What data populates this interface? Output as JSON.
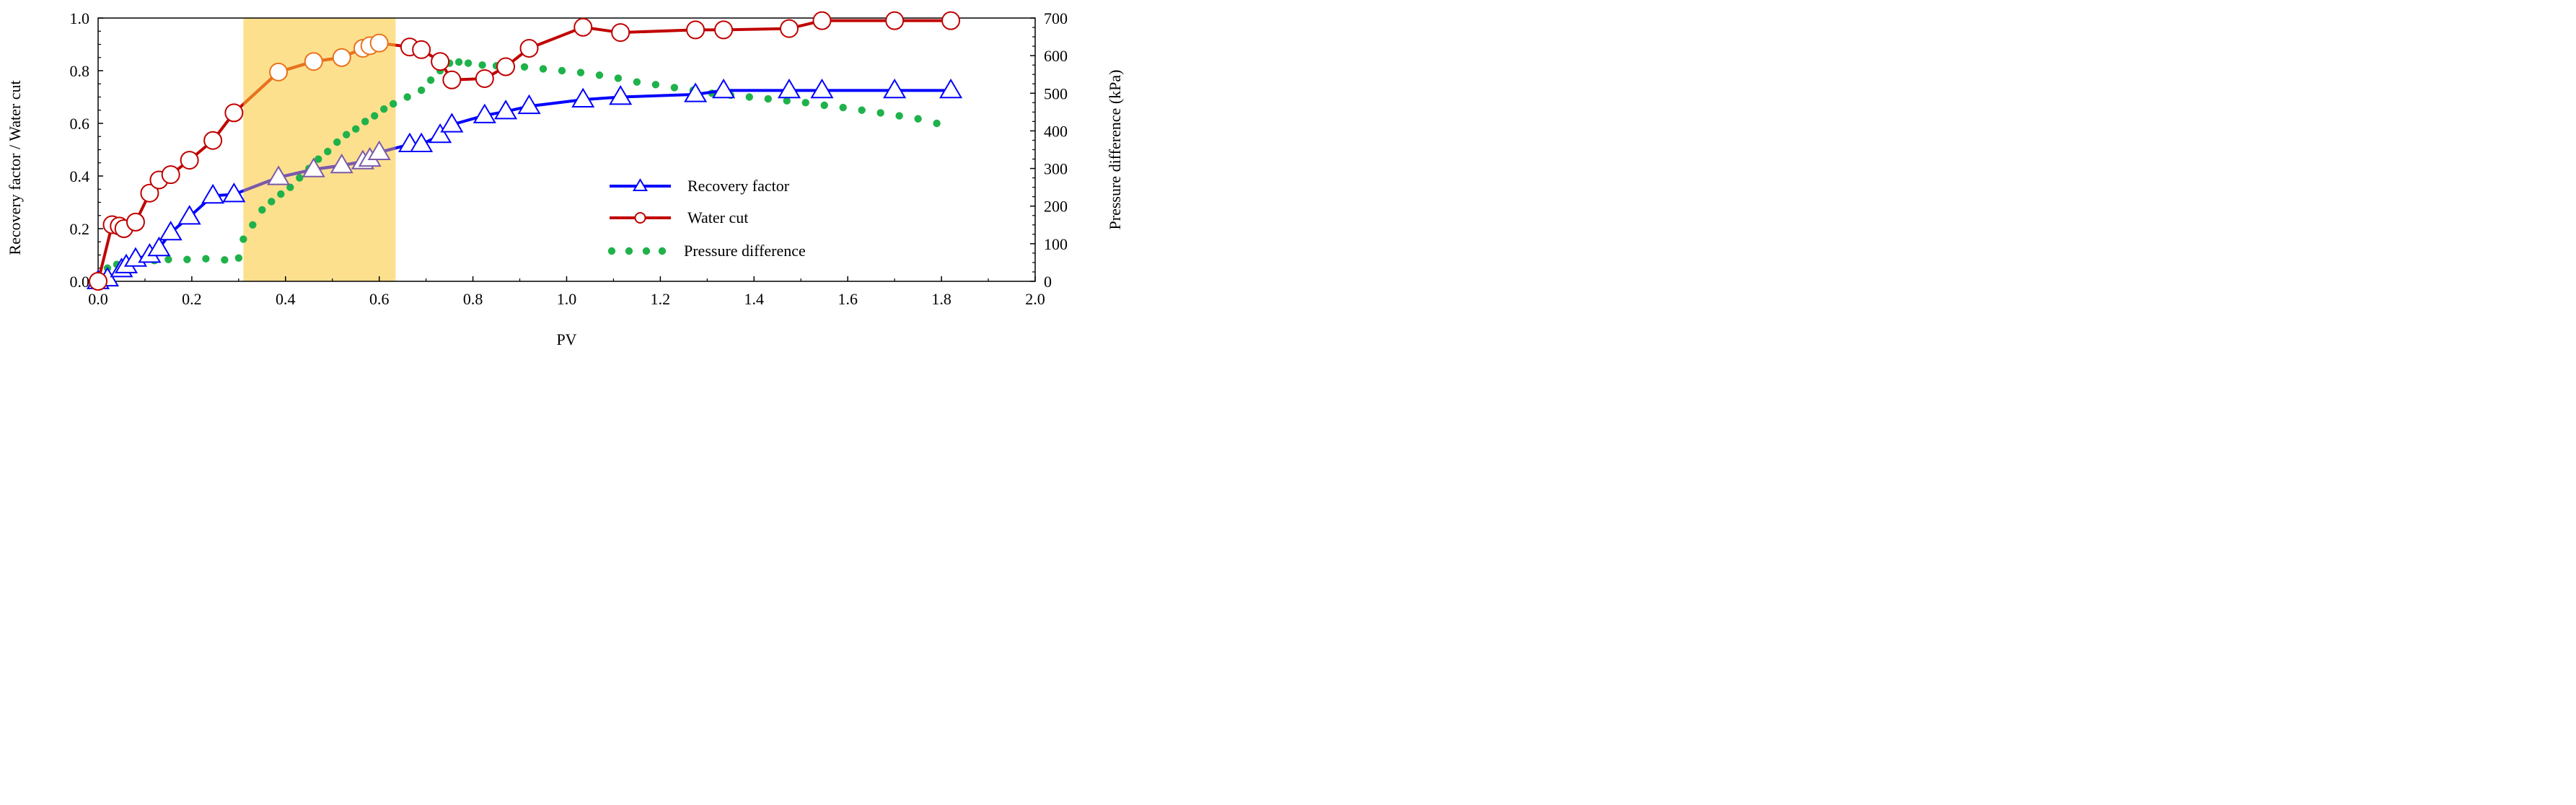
{
  "chart_data": {
    "type": "line",
    "xlabel": "PV",
    "ylabel_left": "Recovery factor / Water cut",
    "ylabel_right": "Pressure difference (kPa)",
    "xlim": [
      0,
      2.0
    ],
    "ylim_left": [
      0,
      1.0
    ],
    "ylim_right": [
      0,
      700
    ],
    "x_ticks": [
      "0.0",
      "0.2",
      "0.4",
      "0.6",
      "0.8",
      "1.0",
      "1.2",
      "1.4",
      "1.6",
      "1.8",
      "2.0"
    ],
    "y_left_ticks": [
      "0.0",
      "0.2",
      "0.4",
      "0.6",
      "0.8",
      "1.0"
    ],
    "y_right_ticks": [
      "0",
      "100",
      "200",
      "300",
      "400",
      "500",
      "600",
      "700"
    ],
    "grid": false,
    "legend_position": "center-right",
    "highlight_band": {
      "x_start": 0.31,
      "x_end": 0.635,
      "color": "#fde08e"
    },
    "series": [
      {
        "name": "Recovery factor",
        "axis": "left",
        "color": "#0000ff",
        "marker": "triangle",
        "x": [
          0.0,
          0.02,
          0.05,
          0.06,
          0.08,
          0.11,
          0.13,
          0.155,
          0.195,
          0.245,
          0.29,
          0.385,
          0.46,
          0.52,
          0.565,
          0.58,
          0.6,
          0.665,
          0.69,
          0.73,
          0.755,
          0.825,
          0.87,
          0.92,
          1.035,
          1.115,
          1.275,
          1.335,
          1.475,
          1.545,
          1.7,
          1.82
        ],
        "y": [
          0.0,
          0.01,
          0.045,
          0.06,
          0.085,
          0.1,
          0.125,
          0.185,
          0.245,
          0.325,
          0.33,
          0.395,
          0.425,
          0.44,
          0.455,
          0.465,
          0.49,
          0.52,
          0.52,
          0.555,
          0.595,
          0.63,
          0.645,
          0.665,
          0.69,
          0.7,
          0.71,
          0.725,
          0.725,
          0.725,
          0.725,
          0.725
        ]
      },
      {
        "name": "Water cut",
        "axis": "left",
        "color": "#c00000",
        "marker": "circle",
        "x": [
          0.0,
          0.03,
          0.045,
          0.055,
          0.08,
          0.11,
          0.13,
          0.155,
          0.195,
          0.245,
          0.29,
          0.385,
          0.46,
          0.52,
          0.565,
          0.58,
          0.6,
          0.665,
          0.69,
          0.73,
          0.755,
          0.825,
          0.87,
          0.92,
          1.035,
          1.115,
          1.275,
          1.335,
          1.475,
          1.545,
          1.7,
          1.82
        ],
        "y": [
          0.0,
          0.215,
          0.21,
          0.2,
          0.225,
          0.335,
          0.385,
          0.405,
          0.46,
          0.535,
          0.64,
          0.795,
          0.835,
          0.85,
          0.885,
          0.895,
          0.905,
          0.89,
          0.88,
          0.835,
          0.765,
          0.77,
          0.815,
          0.885,
          0.965,
          0.945,
          0.955,
          0.955,
          0.96,
          0.99,
          0.99,
          0.99
        ]
      },
      {
        "name": "Pressure difference",
        "axis": "right",
        "color": "#1fb24a",
        "marker": "dot",
        "x": [
          0.0,
          0.02,
          0.04,
          0.06,
          0.09,
          0.12,
          0.15,
          0.19,
          0.23,
          0.27,
          0.3,
          0.31,
          0.33,
          0.35,
          0.37,
          0.39,
          0.41,
          0.43,
          0.45,
          0.47,
          0.49,
          0.51,
          0.53,
          0.55,
          0.57,
          0.59,
          0.61,
          0.63,
          0.66,
          0.69,
          0.71,
          0.73,
          0.75,
          0.77,
          0.79,
          0.82,
          0.85,
          0.88,
          0.91,
          0.95,
          0.99,
          1.03,
          1.07,
          1.11,
          1.15,
          1.19,
          1.23,
          1.27,
          1.31,
          1.35,
          1.39,
          1.43,
          1.47,
          1.51,
          1.55,
          1.59,
          1.63,
          1.67,
          1.71,
          1.75,
          1.79
        ],
        "y": [
          0,
          35,
          45,
          50,
          52,
          55,
          58,
          58,
          60,
          57,
          62,
          112,
          150,
          190,
          212,
          232,
          250,
          275,
          300,
          325,
          345,
          370,
          390,
          405,
          425,
          440,
          458,
          472,
          490,
          508,
          535,
          560,
          580,
          583,
          580,
          575,
          573,
          568,
          570,
          565,
          560,
          555,
          548,
          540,
          530,
          523,
          515,
          508,
          500,
          495,
          490,
          485,
          480,
          475,
          468,
          462,
          455,
          448,
          440,
          432,
          420
        ]
      }
    ]
  }
}
